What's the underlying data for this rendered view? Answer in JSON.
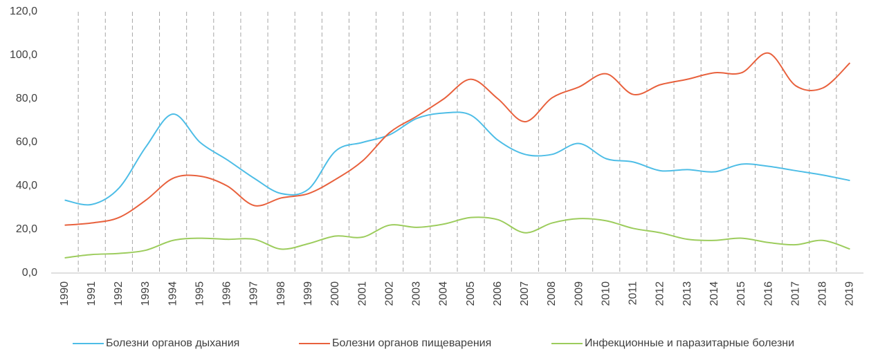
{
  "chart_data": {
    "type": "line",
    "categories": [
      "1990",
      "1991",
      "1992",
      "1993",
      "1994",
      "1995",
      "1996",
      "1997",
      "1998",
      "1999",
      "2000",
      "2001",
      "2002",
      "2003",
      "2004",
      "2005",
      "2006",
      "2007",
      "2008",
      "2009",
      "2010",
      "2011",
      "2012",
      "2013",
      "2014",
      "2015",
      "2016",
      "2017",
      "2018",
      "2019"
    ],
    "series": [
      {
        "name": "Болезни органов дыхания",
        "color": "#4dbde6",
        "values": [
          33.5,
          31.5,
          39,
          58,
          73,
          60,
          52,
          43.5,
          36.5,
          38.5,
          56,
          60,
          63.5,
          71,
          73.5,
          72.5,
          61,
          54.5,
          54.5,
          59.5,
          52.5,
          51,
          47,
          47.5,
          46.5,
          50,
          49,
          47,
          45,
          42.5
        ]
      },
      {
        "name": "Болезни органов пищеварения",
        "color": "#e8603c",
        "values": [
          22,
          23,
          25.5,
          33.5,
          43.5,
          44.5,
          40,
          31,
          34.5,
          36.5,
          43,
          51.5,
          64.5,
          72,
          80,
          89,
          80,
          69.5,
          80.5,
          85.5,
          91.5,
          82,
          86.5,
          89,
          92,
          92,
          101,
          86,
          85,
          96.5
        ]
      },
      {
        "name": "Инфекционные и паразитарные болезни",
        "color": "#9ccc5c",
        "values": [
          7,
          8.5,
          9,
          10.5,
          15,
          16,
          15.5,
          15.5,
          11,
          13.5,
          17,
          16.5,
          22,
          21,
          22.5,
          25.5,
          24.5,
          18.5,
          23,
          25,
          24,
          20.5,
          18.5,
          15.5,
          15,
          16,
          14,
          13,
          15,
          11
        ]
      }
    ],
    "ylim": [
      0,
      120
    ],
    "yticks": [
      {
        "value": 0,
        "label": "0,0"
      },
      {
        "value": 20,
        "label": "20,0"
      },
      {
        "value": 40,
        "label": "40,0"
      },
      {
        "value": 60,
        "label": "60,0"
      },
      {
        "value": 80,
        "label": "80,0"
      },
      {
        "value": 100,
        "label": "100,0"
      },
      {
        "value": 120,
        "label": "120,0"
      }
    ],
    "legend": "bottom"
  }
}
